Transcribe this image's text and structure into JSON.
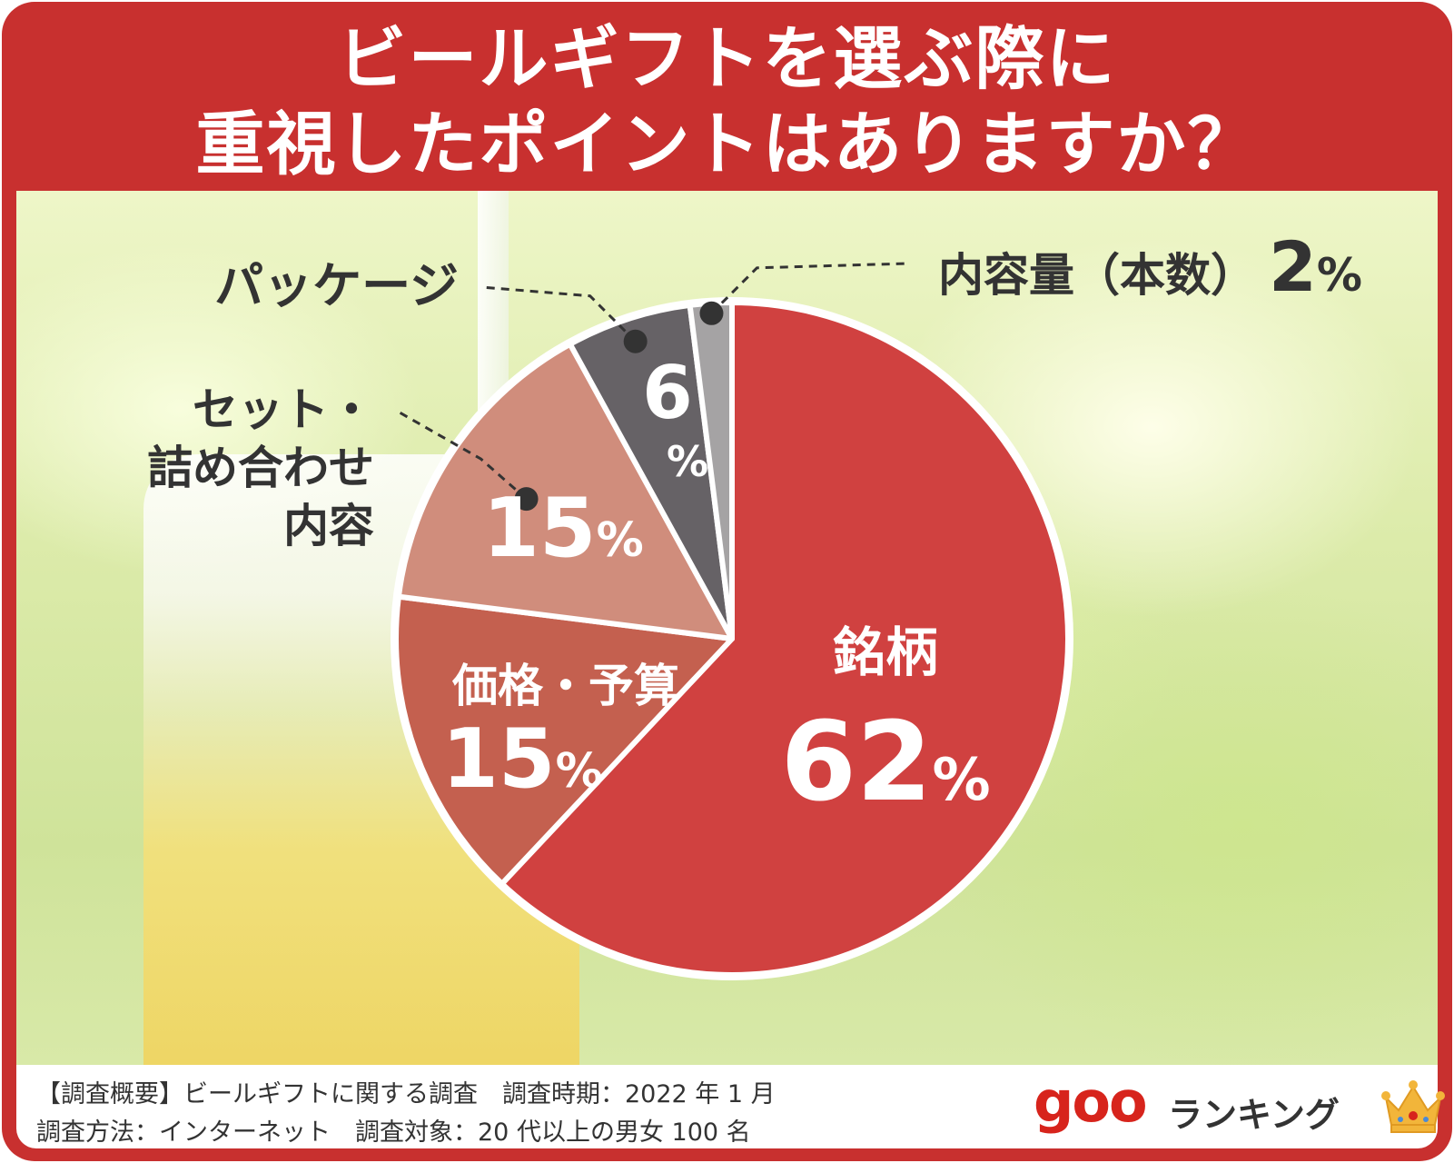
{
  "title": {
    "line1": "ビールギフトを選ぶ際に",
    "line2": "重視したポイントはありますか？"
  },
  "chart_data": {
    "type": "pie",
    "title": "ビールギフトを選ぶ際に重視したポイントはありますか？",
    "slices": [
      {
        "label": "銘柄",
        "value": 62,
        "display": "62",
        "color": "#d04140",
        "label_inside": true
      },
      {
        "label": "価格・予算",
        "value": 15,
        "display": "15",
        "color": "#c4604f",
        "label_inside": true
      },
      {
        "label": "セット・詰め合わせ内容",
        "label_lines": [
          "セット・",
          "詰め合わせ",
          "内容"
        ],
        "value": 15,
        "display": "15",
        "color": "#d08d7c",
        "label_inside": false
      },
      {
        "label": "パッケージ",
        "value": 6,
        "display": "6",
        "color": "#666266",
        "label_inside": false
      },
      {
        "label": "内容量（本数）",
        "value": 2,
        "display": "2",
        "color": "#a5a3a4",
        "label_inside": false
      }
    ],
    "unit": "%"
  },
  "footer": {
    "note_line1": "【調査概要】ビールギフトに関する調査　調査時期：2022 年 1 月",
    "note_line2": "調査方法：インターネット　調査対象：20 代以上の男女 100 名",
    "brand_goo": "goo",
    "brand_ranking": "ランキング"
  },
  "icons": {
    "crown": "crown-icon"
  },
  "colors": {
    "frame": "#c8302f",
    "brand": "#d7241c",
    "crown": "#f2b53a"
  }
}
